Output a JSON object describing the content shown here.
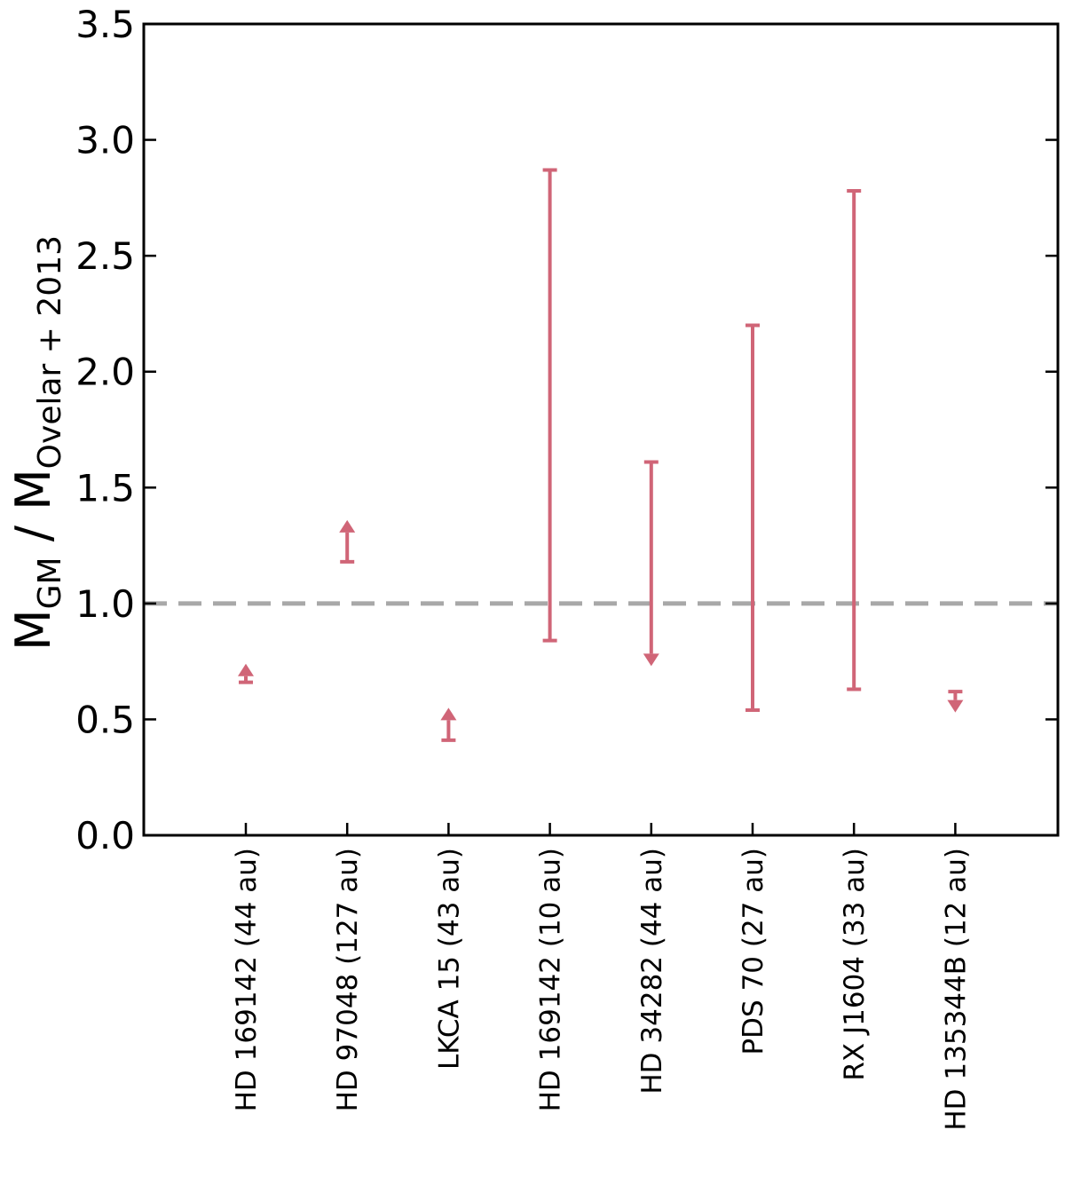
{
  "chart_data": {
    "type": "errorbar",
    "title": "",
    "xlabel": "",
    "ylabel": {
      "main": "M",
      "main_sub": "GM",
      "separator": " / ",
      "denom": "M",
      "denom_sub": "Ovelar + 2013"
    },
    "ylim": [
      0,
      3.5
    ],
    "yticks": [
      "0.0",
      "0.5",
      "1.0",
      "1.5",
      "2.0",
      "2.5",
      "3.0",
      "3.5"
    ],
    "reference_line": {
      "y": 1.0,
      "style": "dashed",
      "color": "#a8a8a8"
    },
    "series_color": "#d06577",
    "grid": false,
    "categories": [
      "HD 169142 (44 au)",
      "HD 97048 (127 au)",
      "LKCA 15 (43 au)",
      "HD 169142 (10 au)",
      "HD 34282 (44 au)",
      "PDS 70 (27 au)",
      "RX J1604 (33 au)",
      "HD 135344B (12 au)"
    ],
    "points": [
      {
        "kind": "lower_limit",
        "low": 0.66,
        "high": 0.74
      },
      {
        "kind": "lower_limit",
        "low": 1.18,
        "high": 1.36
      },
      {
        "kind": "lower_limit",
        "low": 0.41,
        "high": 0.55
      },
      {
        "kind": "range",
        "low": 0.84,
        "high": 2.87
      },
      {
        "kind": "upper_limit",
        "low": 0.73,
        "high": 1.61
      },
      {
        "kind": "range",
        "low": 0.54,
        "high": 2.2
      },
      {
        "kind": "range",
        "low": 0.63,
        "high": 2.78
      },
      {
        "kind": "upper_limit",
        "low": 0.53,
        "high": 0.62
      }
    ]
  }
}
